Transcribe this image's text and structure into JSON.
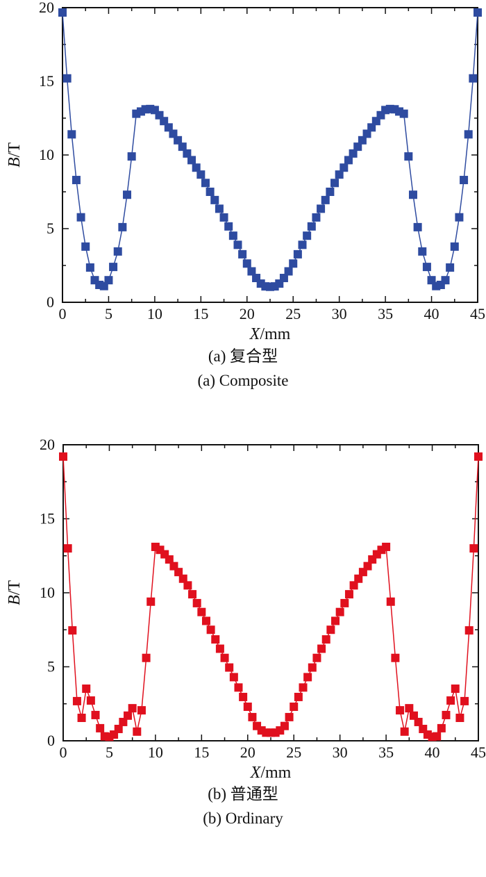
{
  "chart_data": [
    {
      "type": "line",
      "marker": "square",
      "color": "#2E4BA0",
      "xlabel_var": "X",
      "xlabel_unit": "/mm",
      "ylabel_var": "B",
      "ylabel_unit": "/T",
      "xlim": [
        0,
        45
      ],
      "ylim": [
        0,
        20
      ],
      "xticks": [
        "0",
        "5",
        "10",
        "15",
        "20",
        "25",
        "30",
        "35",
        "40",
        "45"
      ],
      "yticks": [
        "0",
        "5",
        "10",
        "15",
        "20"
      ],
      "grid": false,
      "caption_cn": "(a) 复合型",
      "caption_en": "(a) Composite",
      "x_start": 0,
      "x_step": 0.5,
      "values": [
        19.67,
        15.2,
        11.4,
        8.3,
        5.77,
        3.78,
        2.36,
        1.5,
        1.18,
        1.1,
        1.5,
        2.4,
        3.45,
        5.1,
        7.3,
        9.9,
        12.8,
        12.95,
        13.1,
        13.12,
        13.05,
        12.7,
        12.3,
        11.87,
        11.44,
        11.0,
        10.56,
        10.1,
        9.65,
        9.14,
        8.67,
        8.1,
        7.5,
        6.94,
        6.35,
        5.76,
        5.15,
        4.52,
        3.9,
        3.26,
        2.63,
        2.1,
        1.65,
        1.27,
        1.08,
        1.05,
        1.08,
        1.27,
        1.65,
        2.1,
        2.63,
        3.26,
        3.9,
        4.52,
        5.15,
        5.76,
        6.35,
        6.94,
        7.5,
        8.1,
        8.67,
        9.14,
        9.65,
        10.1,
        10.56,
        11.0,
        11.44,
        11.87,
        12.3,
        12.7,
        13.05,
        13.12,
        13.1,
        12.95,
        12.8,
        9.9,
        7.3,
        5.1,
        3.45,
        2.4,
        1.5,
        1.1,
        1.18,
        1.5,
        2.36,
        3.78,
        5.77,
        8.3,
        11.4,
        15.2,
        19.67
      ]
    },
    {
      "type": "line",
      "marker": "square",
      "color": "#E0101E",
      "xlabel_var": "X",
      "xlabel_unit": "/mm",
      "ylabel_var": "B",
      "ylabel_unit": "/T",
      "xlim": [
        0,
        45
      ],
      "ylim": [
        0,
        20
      ],
      "xticks": [
        "0",
        "5",
        "10",
        "15",
        "20",
        "25",
        "30",
        "35",
        "40",
        "45"
      ],
      "yticks": [
        "0",
        "5",
        "10",
        "15",
        "20"
      ],
      "grid": false,
      "caption_cn": "(b) 普通型",
      "caption_en": "(b) Ordinary",
      "x_start": 0,
      "x_step": 0.5,
      "values": [
        19.2,
        13.0,
        7.46,
        2.68,
        1.55,
        3.52,
        2.72,
        1.74,
        0.85,
        0.3,
        0.27,
        0.42,
        0.8,
        1.27,
        1.7,
        2.2,
        0.62,
        2.06,
        5.6,
        9.4,
        13.1,
        12.9,
        12.6,
        12.25,
        11.8,
        11.4,
        10.95,
        10.5,
        9.9,
        9.3,
        8.7,
        8.1,
        7.5,
        6.85,
        6.22,
        5.6,
        4.95,
        4.3,
        3.6,
        2.96,
        2.3,
        1.6,
        1.0,
        0.7,
        0.55,
        0.55,
        0.55,
        0.7,
        1.0,
        1.6,
        2.3,
        2.96,
        3.6,
        4.3,
        4.95,
        5.6,
        6.22,
        6.85,
        7.5,
        8.1,
        8.7,
        9.3,
        9.9,
        10.5,
        10.95,
        11.4,
        11.8,
        12.25,
        12.6,
        12.9,
        13.1,
        9.4,
        5.6,
        2.06,
        0.62,
        2.2,
        1.7,
        1.27,
        0.8,
        0.42,
        0.27,
        0.3,
        0.85,
        1.74,
        2.72,
        3.52,
        1.55,
        2.68,
        7.46,
        13.0,
        19.2
      ]
    }
  ]
}
